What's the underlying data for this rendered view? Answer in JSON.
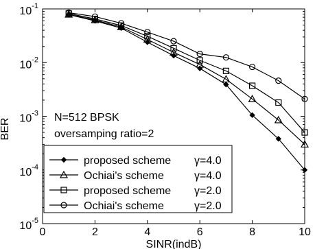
{
  "chart_data": {
    "type": "line",
    "title": "",
    "xlabel": "SINR(indB)",
    "ylabel": "BER",
    "xlim": [
      0,
      10
    ],
    "ylim": [
      1e-05,
      0.1
    ],
    "yscale": "log",
    "grid": false,
    "legend_position": "bottom-left",
    "x_ticks": [
      "0",
      "2",
      "4",
      "6",
      "8",
      "10"
    ],
    "y_ticks": [
      {
        "base": "10",
        "exp": "-5",
        "value": 1e-05
      },
      {
        "base": "10",
        "exp": "-4",
        "value": 0.0001
      },
      {
        "base": "10",
        "exp": "-3",
        "value": 0.001
      },
      {
        "base": "10",
        "exp": "-2",
        "value": 0.01
      },
      {
        "base": "10",
        "exp": "-1",
        "value": 0.1
      }
    ],
    "annotations": [
      "N=512 BPSK",
      "oversamping ratio=2"
    ],
    "series": [
      {
        "name": "proposed scheme γ=4.0",
        "label_text": "proposed scheme",
        "label_gamma": "γ=4.0",
        "marker": "plus",
        "x": [
          1,
          2,
          3,
          4,
          5,
          6,
          7,
          8,
          9,
          10
        ],
        "y": [
          0.078,
          0.06,
          0.044,
          0.024,
          0.0135,
          0.0078,
          0.0039,
          0.00105,
          0.00038,
          0.0001
        ]
      },
      {
        "name": "Ochiai's scheme γ=4.0",
        "label_text": "Ochiai's scheme",
        "label_gamma": "γ=4.0",
        "marker": "triangle",
        "x": [
          1,
          2,
          3,
          4,
          5,
          6,
          7,
          8,
          9,
          10
        ],
        "y": [
          0.079,
          0.062,
          0.046,
          0.027,
          0.0155,
          0.0092,
          0.0049,
          0.0021,
          0.00085,
          0.0003
        ]
      },
      {
        "name": "proposed scheme γ=2.0",
        "label_text": "proposed scheme",
        "label_gamma": "γ=2.0",
        "marker": "square",
        "x": [
          1,
          2,
          3,
          4,
          5,
          6,
          7,
          8,
          9,
          10
        ],
        "y": [
          0.082,
          0.065,
          0.049,
          0.031,
          0.0185,
          0.011,
          0.007,
          0.0037,
          0.0018,
          0.0005
        ]
      },
      {
        "name": "Ochiai's scheme γ=2.0",
        "label_text": "Ochiai's scheme",
        "label_gamma": "γ=2.0",
        "marker": "circle",
        "x": [
          1,
          2,
          3,
          4,
          5,
          6,
          7,
          8,
          9,
          10
        ],
        "y": [
          0.085,
          0.072,
          0.054,
          0.037,
          0.025,
          0.0145,
          0.0125,
          0.0083,
          0.0046,
          0.0021
        ]
      }
    ]
  }
}
